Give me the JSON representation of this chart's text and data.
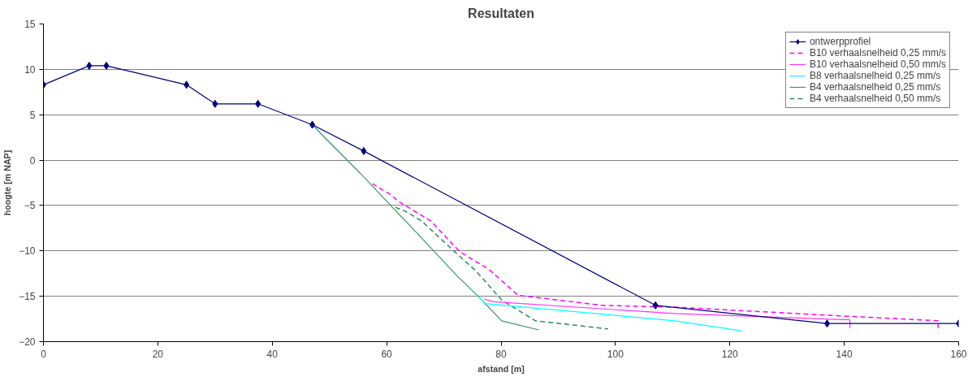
{
  "chart_data": {
    "type": "line",
    "title": "Resultaten",
    "xlabel": "afstand [m]",
    "ylabel": "hoogte [m NAP]",
    "xlim": [
      0,
      160
    ],
    "xticks": [
      0,
      20,
      40,
      60,
      80,
      100,
      120,
      140,
      160
    ],
    "ylim": [
      -20,
      15
    ],
    "yticks": [
      -20,
      -15,
      -10,
      -5,
      0,
      5,
      10,
      15
    ],
    "grid": "y",
    "legend": "top right",
    "series": [
      {
        "name": "ontwerpprofiel",
        "color": "#000080",
        "marker": "diamond",
        "line_style": "solid",
        "x": [
          0,
          8,
          11,
          25,
          30,
          37.5,
          47,
          56,
          107,
          137,
          160
        ],
        "values": [
          8.3,
          10.4,
          10.4,
          8.3,
          6.2,
          6.2,
          3.9,
          1,
          -16,
          -18,
          -18
        ]
      },
      {
        "name": "B10 verhaalsnelheid 0,25 mm/s",
        "color": "#ff00ff",
        "marker": "none",
        "line_style": "dashed",
        "x": [
          57.5,
          60.7,
          62.2,
          67.7,
          72.8,
          77.8,
          83,
          97.7,
          110.4,
          140.6,
          156.4,
          156.4
        ],
        "values": [
          -2.6,
          -3.8,
          -4.6,
          -6.7,
          -10.1,
          -12,
          -14.9,
          -16,
          -16.2,
          -17.2,
          -17.7,
          -18.5
        ]
      },
      {
        "name": "B10 verhaalsnelheid 0,50 mm/s",
        "color": "#ff33ff",
        "marker": "none",
        "line_style": "solid",
        "x": [
          77,
          78.7,
          110.4,
          141,
          141
        ],
        "values": [
          -15.3,
          -15.6,
          -16.9,
          -17.6,
          -18.5
        ]
      },
      {
        "name": "B8 verhaalsnelheid 0,25 mm/s",
        "color": "#00ffff",
        "marker": "none",
        "line_style": "solid",
        "x": [
          76,
          77.2,
          110.4,
          122
        ],
        "values": [
          -15,
          -15.8,
          -17.7,
          -18.8
        ]
      },
      {
        "name": "B4 verhaalsnelheid 0,25 mm/s",
        "color": "#339966",
        "marker": "none",
        "line_style": "solid",
        "x": [
          47,
          49,
          55.3,
          60.7,
          65.1,
          72.4,
          76,
          80.1,
          86.6
        ],
        "values": [
          3.9,
          2.6,
          -1.4,
          -5,
          -7.9,
          -12.8,
          -15,
          -17.7,
          -18.7
        ]
      },
      {
        "name": "B4 verhaalsnelheid 0,50 mm/s",
        "color": "#2e8b57",
        "marker": "none",
        "line_style": "dashed",
        "x": [
          61.5,
          63.2,
          66.1,
          71.9,
          75.6,
          80.1,
          86,
          98.7
        ],
        "values": [
          -5.2,
          -5.6,
          -6.7,
          -10.1,
          -12.2,
          -15.4,
          -17.7,
          -18.6
        ]
      }
    ]
  }
}
